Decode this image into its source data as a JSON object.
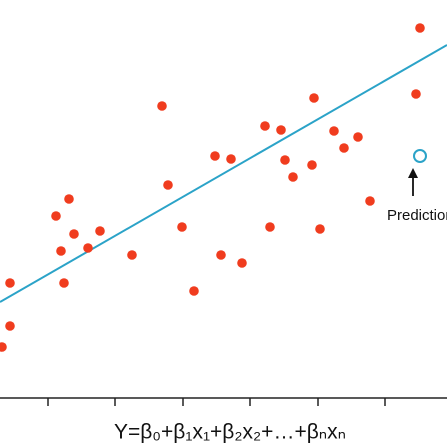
{
  "chart_data": {
    "type": "scatter",
    "x_label": "Y=β₀+β₁x₁+β₂x₂+…+βₙxₙ",
    "xlim": [
      0,
      447
    ],
    "ylim": [
      0,
      398
    ],
    "xticks": [
      48,
      115,
      183,
      250,
      318,
      385
    ],
    "series": [
      {
        "color": "#f03c1e",
        "x": [
          420,
          314,
          416,
          162,
          265,
          281,
          334,
          358,
          344,
          215,
          231,
          285,
          312,
          293,
          168,
          69,
          370,
          56,
          74,
          100,
          182,
          270,
          320,
          61,
          88,
          132,
          221,
          242,
          10,
          64,
          194,
          10,
          2
        ],
        "values": [
          370,
          300,
          304,
          292,
          272,
          268,
          267,
          261,
          250,
          242,
          239,
          238,
          233,
          221,
          213,
          199,
          197,
          182,
          164,
          167,
          171,
          171,
          169,
          147,
          150,
          143,
          143,
          135,
          115,
          115,
          107,
          72,
          51
        ]
      }
    ],
    "fit_line": {
      "color": "#2ba3c8",
      "x": [
        0,
        447
      ],
      "values": [
        96,
        353
      ]
    },
    "prediction": {
      "color": "#2ba3c8",
      "x": 420,
      "value": 242,
      "label": "Prediction"
    }
  }
}
